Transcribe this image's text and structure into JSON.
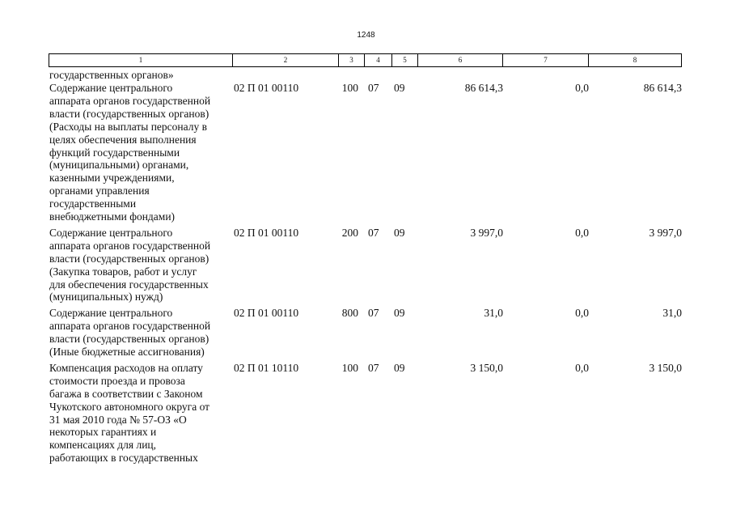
{
  "header": {
    "page_number": "1248"
  },
  "table": {
    "columns": [
      "1",
      "2",
      "3",
      "4",
      "5",
      "6",
      "7",
      "8"
    ],
    "continuation": "государственных органов»",
    "rows": [
      {
        "description": [
          "Содержание центрального",
          "аппарата органов государственной",
          "власти (государственных органов)",
          "(Расходы на выплаты персоналу в",
          "целях обеспечения выполнения",
          "функций государственными",
          "(муниципальными) органами,",
          "казенными учреждениями,",
          "органами управления",
          "государственными",
          "внебюджетными фондами)"
        ],
        "cells": [
          "02 П 01 00110",
          "100",
          "07",
          "09",
          "86 614,3",
          "0,0",
          "86 614,3"
        ]
      },
      {
        "description": [
          "Содержание центрального",
          "аппарата органов государственной",
          "власти (государственных органов)",
          "(Закупка товаров, работ и услуг",
          "для обеспечения государственных",
          "(муниципальных) нужд)"
        ],
        "cells": [
          "02 П 01 00110",
          "200",
          "07",
          "09",
          "3 997,0",
          "0,0",
          "3 997,0"
        ]
      },
      {
        "description": [
          "Содержание центрального",
          "аппарата органов государственной",
          "власти (государственных органов)",
          "(Иные бюджетные ассигнования)"
        ],
        "cells": [
          "02 П 01 00110",
          "800",
          "07",
          "09",
          "31,0",
          "0,0",
          "31,0"
        ]
      },
      {
        "description": [
          "Компенсация расходов на оплату",
          "стоимости проезда и провоза",
          "багажа в соответствии с Законом",
          "Чукотского автономного округа от",
          "31 мая 2010 года № 57-ОЗ «О",
          "некоторых гарантиях и",
          "компенсациях для лиц,",
          "работающих в государственных"
        ],
        "cells": [
          "02 П 01 10110",
          "100",
          "07",
          "09",
          "3 150,0",
          "0,0",
          "3 150,0"
        ]
      }
    ]
  }
}
